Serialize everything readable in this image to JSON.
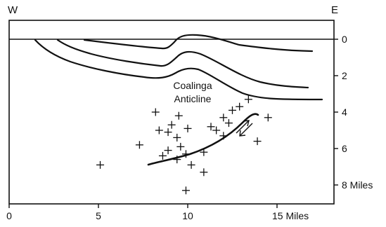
{
  "compass": {
    "west": "W",
    "east": "E"
  },
  "depth_axis": {
    "ticks": [
      "0",
      "2",
      "4",
      "6",
      "8 Miles"
    ]
  },
  "distance_axis": {
    "ticks": [
      "0",
      "5",
      "10",
      "15 Miles"
    ]
  },
  "structure": {
    "label_line1": "Coalinga",
    "label_line2": "Anticline"
  },
  "colors": {
    "ink": "#111111",
    "background": "#ffffff"
  },
  "chart_data": {
    "type": "scatter",
    "x_units": "Miles",
    "y_units": "Miles",
    "xlim": [
      0,
      18
    ],
    "ylim": [
      0,
      9
    ],
    "series": [
      {
        "points": [
          [
            5.1,
            6.9
          ],
          [
            7.3,
            5.8
          ],
          [
            8.2,
            4.0
          ],
          [
            8.4,
            5.0
          ],
          [
            8.6,
            6.4
          ],
          [
            8.9,
            5.1
          ],
          [
            8.9,
            6.1
          ],
          [
            9.1,
            4.7
          ],
          [
            9.4,
            5.4
          ],
          [
            9.4,
            6.6
          ],
          [
            9.5,
            4.2
          ],
          [
            9.6,
            5.9
          ],
          [
            9.9,
            6.3
          ],
          [
            9.9,
            8.3
          ],
          [
            10.0,
            4.9
          ],
          [
            10.2,
            6.9
          ],
          [
            10.9,
            6.2
          ],
          [
            10.9,
            7.3
          ],
          [
            11.3,
            4.8
          ],
          [
            11.6,
            5.0
          ],
          [
            12.0,
            5.3
          ],
          [
            12.0,
            4.3
          ],
          [
            12.3,
            4.6
          ],
          [
            12.5,
            3.9
          ],
          [
            12.9,
            3.7
          ],
          [
            13.4,
            3.3
          ],
          [
            13.9,
            5.6
          ],
          [
            14.5,
            4.3
          ]
        ]
      }
    ]
  }
}
